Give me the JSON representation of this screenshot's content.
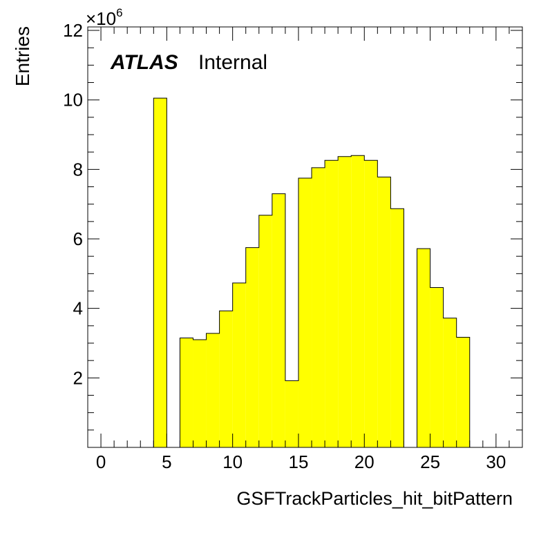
{
  "chart_data": {
    "type": "bar",
    "style": "histogram",
    "fill_color": "#ffff00",
    "stroke_color": "#000000",
    "xlabel": "GSFTrackParticles_hit_bitPattern",
    "ylabel": "Entries",
    "y_multiplier_label": "×10",
    "y_multiplier_exponent": "6",
    "xlim": [
      -1,
      32
    ],
    "ylim": [
      0,
      12.1
    ],
    "x_ticks": [
      0,
      5,
      10,
      15,
      20,
      25,
      30
    ],
    "x_tick_labels": [
      "0",
      "5",
      "10",
      "15",
      "20",
      "25",
      "30"
    ],
    "y_ticks": [
      2,
      4,
      6,
      8,
      10,
      12
    ],
    "y_tick_labels": [
      "2",
      "4",
      "6",
      "8",
      "10",
      "12"
    ],
    "grid": false,
    "bin_width": 1,
    "bins": [
      {
        "x_low": 4,
        "value": 10.05
      },
      {
        "x_low": 6,
        "value": 3.15
      },
      {
        "x_low": 7,
        "value": 3.1
      },
      {
        "x_low": 8,
        "value": 3.28
      },
      {
        "x_low": 9,
        "value": 3.93
      },
      {
        "x_low": 10,
        "value": 4.73
      },
      {
        "x_low": 11,
        "value": 5.75
      },
      {
        "x_low": 12,
        "value": 6.68
      },
      {
        "x_low": 13,
        "value": 7.3
      },
      {
        "x_low": 14,
        "value": 1.92
      },
      {
        "x_low": 15,
        "value": 7.75
      },
      {
        "x_low": 16,
        "value": 8.05
      },
      {
        "x_low": 17,
        "value": 8.26
      },
      {
        "x_low": 18,
        "value": 8.37
      },
      {
        "x_low": 19,
        "value": 8.4
      },
      {
        "x_low": 20,
        "value": 8.26
      },
      {
        "x_low": 21,
        "value": 7.78
      },
      {
        "x_low": 22,
        "value": 6.87
      },
      {
        "x_low": 24,
        "value": 5.72
      },
      {
        "x_low": 25,
        "value": 4.6
      },
      {
        "x_low": 26,
        "value": 3.72
      },
      {
        "x_low": 27,
        "value": 3.17
      }
    ],
    "annotations": {
      "experiment": "ATLAS",
      "status": "Internal"
    }
  }
}
